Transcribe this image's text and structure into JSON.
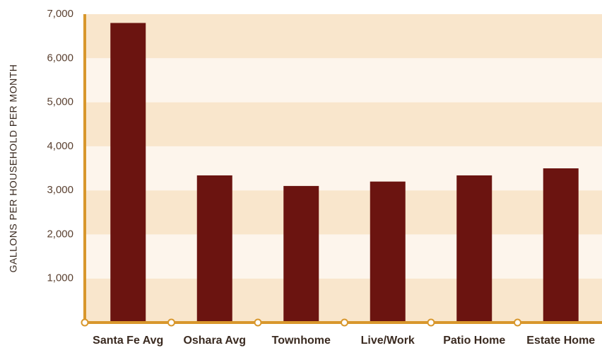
{
  "chart_data": {
    "type": "bar",
    "y_axis_label": "GALLONS PER HOUSEHOLD PER MONTH",
    "categories": [
      "Santa Fe Avg",
      "Oshara Avg",
      "Townhome",
      "Live/Work",
      "Patio Home",
      "Estate Home"
    ],
    "values": [
      6800,
      3340,
      3100,
      3200,
      3340,
      3500
    ],
    "color": "#6b1410",
    "ylim": [
      0,
      7000
    ],
    "yticks": [
      {
        "value": 1000,
        "label": "1,000"
      },
      {
        "value": 2000,
        "label": "2,000"
      },
      {
        "value": 3000,
        "label": "3,000"
      },
      {
        "value": 4000,
        "label": "4,000"
      },
      {
        "value": 5000,
        "label": "5,000"
      },
      {
        "value": 6000,
        "label": "6,000"
      },
      {
        "value": 7000,
        "label": "7,000"
      }
    ],
    "grid": true
  }
}
